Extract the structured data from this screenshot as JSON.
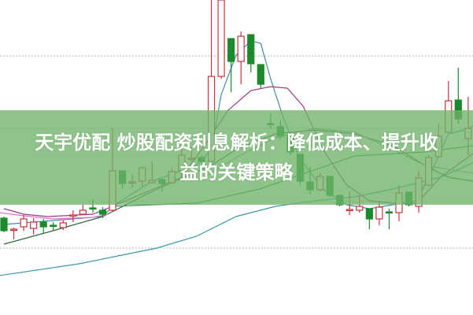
{
  "headline": {
    "line1": "天宇优配 炒股配资利息解析：降低成本、提升收",
    "line2": "益的关键策略"
  },
  "colors": {
    "up": "#c8323c",
    "down": "#1b8a2c",
    "banner": "#6eb469",
    "grid": "#b0b0b0"
  },
  "chart_data": {
    "type": "candlestick",
    "title": "",
    "xlabel": "",
    "ylabel": "",
    "ylim": [
      0,
      40
    ],
    "grid": true,
    "grid_style": "dotted-horizontal",
    "gridlines": [
      8.5,
      14.4,
      23.7,
      32.9
    ],
    "candles": [
      [
        12.3,
        12.5,
        10.5,
        10.7
      ],
      [
        10.8,
        11.1,
        9.6,
        10.9
      ],
      [
        11.2,
        12.7,
        10.7,
        12.2
      ],
      [
        11.0,
        12.3,
        10.2,
        11.8
      ],
      [
        11.8,
        12.2,
        10.3,
        11.2
      ],
      [
        11.4,
        11.8,
        10.7,
        11.3
      ],
      [
        11.1,
        12.0,
        10.8,
        11.7
      ],
      [
        12.6,
        13.3,
        11.8,
        12.7
      ],
      [
        12.8,
        14.0,
        12.7,
        13.3
      ],
      [
        13.6,
        14.7,
        13.0,
        13.5
      ],
      [
        13.3,
        13.7,
        12.3,
        12.8
      ],
      [
        13.3,
        23.7,
        13.2,
        18.3
      ],
      [
        18.3,
        18.3,
        16.0,
        16.7
      ],
      [
        16.8,
        17.8,
        16.2,
        16.9
      ],
      [
        17.0,
        18.7,
        16.3,
        18.7
      ],
      [
        16.8,
        19.5,
        16.7,
        17.1
      ],
      [
        17.2,
        17.3,
        15.7,
        16.7
      ],
      [
        16.8,
        18.7,
        16.7,
        18.2
      ],
      [
        18.3,
        21.3,
        17.0,
        20.3
      ],
      [
        19.8,
        21.3,
        19.5,
        19.9
      ],
      [
        20.0,
        20.3,
        19.3,
        19.5
      ],
      [
        19.5,
        40.0,
        19.3,
        30.3
      ],
      [
        30.3,
        40.0,
        30.0,
        40.0
      ],
      [
        35.1,
        35.1,
        28.3,
        32.2
      ],
      [
        32.2,
        36.0,
        29.3,
        35.4
      ],
      [
        35.6,
        35.6,
        30.8,
        31.9
      ],
      [
        31.8,
        31.8,
        28.8,
        29.3
      ],
      [
        24.3,
        25.7,
        23.7,
        24.2
      ],
      [
        23.9,
        24.7,
        22.3,
        22.7
      ],
      [
        22.7,
        23.3,
        20.3,
        20.7
      ],
      [
        20.4,
        20.4,
        16.5,
        17.0
      ],
      [
        16.9,
        18.8,
        15.3,
        15.9
      ],
      [
        15.9,
        18.0,
        15.7,
        17.6
      ],
      [
        17.6,
        17.6,
        15.0,
        15.2
      ],
      [
        15.2,
        15.2,
        13.8,
        14.0
      ],
      [
        13.3,
        15.7,
        12.7,
        13.4
      ],
      [
        13.3,
        15.2,
        13.0,
        13.8
      ],
      [
        13.5,
        13.5,
        10.9,
        12.2
      ],
      [
        12.2,
        14.5,
        11.4,
        13.7
      ],
      [
        13.1,
        13.5,
        10.9,
        13.0
      ],
      [
        13.0,
        16.5,
        11.9,
        15.5
      ],
      [
        15.6,
        15.6,
        13.8,
        14.0
      ],
      [
        13.8,
        18.3,
        13.0,
        17.4
      ],
      [
        16.5,
        20.3,
        16.3,
        20.0
      ],
      [
        20.1,
        24.3,
        20.0,
        22.7
      ],
      [
        23.2,
        29.7,
        23.2,
        27.2
      ],
      [
        27.3,
        31.4,
        24.3,
        24.9
      ],
      [
        22.4,
        27.7,
        20.3,
        23.7
      ]
    ],
    "candle_format": [
      "open",
      "high",
      "low",
      "close"
    ],
    "lines": [
      {
        "color": "#3a8fa0",
        "points": [
          [
            0,
            11.5
          ],
          [
            10,
            12.5
          ],
          [
            11,
            13.8
          ],
          [
            15,
            17.0
          ],
          [
            19.5,
            19.0
          ],
          [
            21,
            21.0
          ],
          [
            22,
            28.0
          ],
          [
            23.5,
            33.0
          ],
          [
            25,
            34.8
          ],
          [
            26,
            34.5
          ],
          [
            27,
            30.0
          ],
          [
            28.3,
            25.0
          ],
          [
            29.9,
            20.0
          ],
          [
            32.3,
            16.0
          ],
          [
            34.7,
            14.0
          ],
          [
            37,
            13.5
          ],
          [
            39.4,
            14.0
          ],
          [
            41.8,
            14.5
          ],
          [
            43.4,
            18.5
          ],
          [
            45,
            23.0
          ],
          [
            46.6,
            23.5
          ],
          [
            47.5,
            24.0
          ]
        ]
      },
      {
        "color": "#9a3a8a",
        "points": [
          [
            0,
            13.5
          ],
          [
            2,
            12.8
          ],
          [
            4.4,
            12.5
          ],
          [
            9,
            12.8
          ],
          [
            11,
            13.8
          ],
          [
            18,
            17.5
          ],
          [
            20.3,
            21.5
          ],
          [
            22.7,
            26.0
          ],
          [
            25,
            28.5
          ],
          [
            27,
            29.0
          ],
          [
            28.7,
            28.8
          ],
          [
            30.3,
            26.5
          ],
          [
            32.3,
            21.0
          ],
          [
            34.7,
            16.5
          ],
          [
            37,
            14.5
          ],
          [
            39.4,
            14.2
          ],
          [
            41.8,
            14.2
          ],
          [
            44.2,
            17.5
          ],
          [
            47.5,
            20.5
          ]
        ]
      },
      {
        "color": "#2a6a3a",
        "points": [
          [
            0,
            9.0
          ],
          [
            4.4,
            10.5
          ],
          [
            10,
            12.5
          ],
          [
            15.5,
            16.0
          ],
          [
            21,
            19.0
          ],
          [
            23.5,
            21.0
          ],
          [
            27.5,
            23.0
          ],
          [
            31.5,
            23.5
          ],
          [
            35.5,
            23.0
          ],
          [
            39.4,
            21.5
          ],
          [
            42.6,
            19.0
          ],
          [
            45,
            17.5
          ],
          [
            47.5,
            17.0
          ]
        ]
      },
      {
        "color": "#9a9a9a",
        "points": [
          [
            20.3,
            17.5
          ],
          [
            23.5,
            20.0
          ],
          [
            27.5,
            22.5
          ],
          [
            31.5,
            23.7
          ],
          [
            35.5,
            23.2
          ],
          [
            39.4,
            21.0
          ],
          [
            42.6,
            19.0
          ],
          [
            47.5,
            18.0
          ]
        ]
      },
      {
        "color": "#3c8a48",
        "points": [
          [
            10.8,
            13.8
          ],
          [
            19.5,
            14.2
          ],
          [
            25.9,
            16.0
          ],
          [
            35.5,
            20.2
          ],
          [
            42.6,
            20.7
          ],
          [
            47.5,
            21.5
          ]
        ]
      },
      {
        "color": "#3a98a8",
        "points": [
          [
            -0.5,
            5.0
          ],
          [
            7.6,
            6.5
          ],
          [
            15.5,
            8.5
          ],
          [
            19.5,
            10.0
          ],
          [
            23.5,
            12.5
          ],
          [
            27.5,
            13.8
          ],
          [
            31.5,
            14.5
          ],
          [
            35.5,
            15.0
          ],
          [
            39.4,
            16.0
          ],
          [
            44.2,
            17.5
          ],
          [
            47.8,
            19.5
          ]
        ]
      },
      {
        "color": "#e070d0",
        "points": [
          [
            -0.5,
            13.0
          ],
          [
            2,
            12.6
          ],
          [
            5,
            12.2
          ],
          [
            9,
            12.4
          ],
          [
            10.5,
            12.8
          ]
        ]
      }
    ]
  }
}
